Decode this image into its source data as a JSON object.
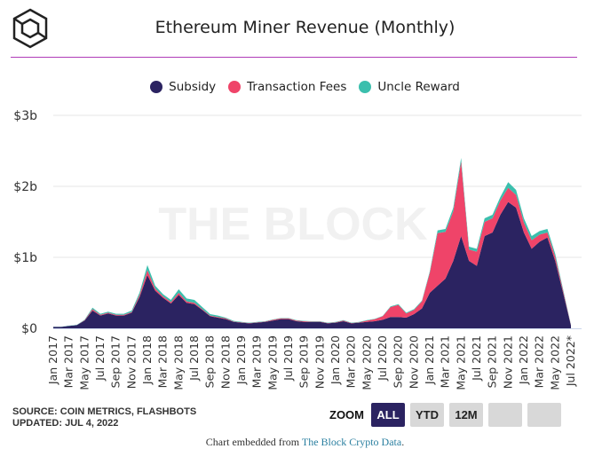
{
  "header": {
    "title": "Ethereum Miner Revenue (Monthly)",
    "logo": "the-block-cube-logo"
  },
  "watermark": "THE BLOCK",
  "legend": [
    {
      "name": "Subsidy",
      "color": "#2b2361"
    },
    {
      "name": "Transaction Fees",
      "color": "#ef4469"
    },
    {
      "name": "Uncle Reward",
      "color": "#3bbfad"
    }
  ],
  "chart_data": {
    "type": "area",
    "stacked": true,
    "title": "Ethereum Miner Revenue (Monthly)",
    "y_ticks": [
      "$0",
      "$1b",
      "$2b",
      "$3b"
    ],
    "ylim": [
      0,
      3
    ],
    "y_unit": "USD billions",
    "grid": "horizontal",
    "legend_position": "top",
    "x_tick_labels": [
      "Jan 2017",
      "Mar 2017",
      "May 2017",
      "Jul 2017",
      "Sep 2017",
      "Nov 2017",
      "Jan 2018",
      "Mar 2018",
      "May 2018",
      "Jul 2018",
      "Sep 2018",
      "Nov 2018",
      "Jan 2019",
      "Mar 2019",
      "May 2019",
      "Jul 2019",
      "Sep 2019",
      "Nov 2019",
      "Jan 2020",
      "Mar 2020",
      "May 2020",
      "Jul 2020",
      "Sep 2020",
      "Nov 2020",
      "Jan 2021",
      "Mar 2021",
      "May 2021",
      "Jul 2021",
      "Sep 2021",
      "Nov 2021",
      "Jan 2022",
      "Mar 2022",
      "May 2022",
      "Jul 2022*"
    ],
    "x_start": "2017-01",
    "x_end": "2022-07",
    "series": [
      {
        "name": "Subsidy",
        "values": [
          0.02,
          0.02,
          0.035,
          0.045,
          0.11,
          0.25,
          0.18,
          0.21,
          0.18,
          0.18,
          0.22,
          0.44,
          0.75,
          0.53,
          0.43,
          0.35,
          0.47,
          0.36,
          0.34,
          0.26,
          0.17,
          0.15,
          0.13,
          0.09,
          0.08,
          0.07,
          0.08,
          0.09,
          0.11,
          0.13,
          0.13,
          0.1,
          0.09,
          0.09,
          0.09,
          0.07,
          0.08,
          0.1,
          0.07,
          0.08,
          0.09,
          0.1,
          0.12,
          0.16,
          0.16,
          0.15,
          0.2,
          0.28,
          0.5,
          0.6,
          0.7,
          0.95,
          1.3,
          0.95,
          0.88,
          1.3,
          1.35,
          1.6,
          1.78,
          1.7,
          1.35,
          1.12,
          1.22,
          1.28,
          0.95,
          0.5,
          0.04
        ]
      },
      {
        "name": "Transaction Fees",
        "values": [
          0,
          0,
          0,
          0,
          0.005,
          0.02,
          0.01,
          0.01,
          0.01,
          0.01,
          0.01,
          0.03,
          0.07,
          0.03,
          0.02,
          0.02,
          0.03,
          0.02,
          0.02,
          0.01,
          0.01,
          0.01,
          0.01,
          0.005,
          0.005,
          0.005,
          0.005,
          0.005,
          0.01,
          0.01,
          0.01,
          0.01,
          0.01,
          0.005,
          0.005,
          0.005,
          0.005,
          0.01,
          0.005,
          0.005,
          0.02,
          0.03,
          0.05,
          0.14,
          0.17,
          0.06,
          0.06,
          0.1,
          0.28,
          0.74,
          0.66,
          0.7,
          1.05,
          0.16,
          0.2,
          0.2,
          0.2,
          0.2,
          0.2,
          0.18,
          0.14,
          0.12,
          0.1,
          0.07,
          0.06,
          0.03,
          0.005
        ]
      },
      {
        "name": "Uncle Reward",
        "values": [
          0.002,
          0.002,
          0.003,
          0.004,
          0.008,
          0.02,
          0.015,
          0.015,
          0.015,
          0.015,
          0.02,
          0.035,
          0.07,
          0.04,
          0.03,
          0.03,
          0.05,
          0.04,
          0.04,
          0.03,
          0.02,
          0.02,
          0.01,
          0.01,
          0.005,
          0.005,
          0.005,
          0.005,
          0.005,
          0.005,
          0.005,
          0.005,
          0.005,
          0.005,
          0.005,
          0.005,
          0.005,
          0.005,
          0.005,
          0.005,
          0.005,
          0.005,
          0.005,
          0.01,
          0.01,
          0.01,
          0.01,
          0.01,
          0.02,
          0.04,
          0.04,
          0.05,
          0.05,
          0.04,
          0.04,
          0.05,
          0.05,
          0.05,
          0.08,
          0.07,
          0.06,
          0.06,
          0.05,
          0.05,
          0.04,
          0.02,
          0.005
        ]
      }
    ]
  },
  "footer": {
    "source": "SOURCE: COIN METRICS, FLASHBOTS",
    "updated": "UPDATED: JUL 4, 2022",
    "embed_prefix": "Chart embedded from ",
    "embed_link": "The Block Crypto Data",
    "embed_suffix": "."
  },
  "zoom": {
    "label": "ZOOM",
    "buttons": [
      "ALL",
      "YTD",
      "12M",
      "",
      ""
    ],
    "active": "ALL"
  }
}
